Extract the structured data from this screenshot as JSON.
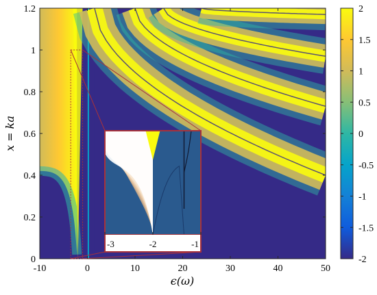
{
  "chart_data": {
    "type": "heatmap",
    "xlabel": "ϵ(ω)",
    "ylabel": "x = ka",
    "xlim": [
      -10,
      50
    ],
    "ylim": [
      0,
      1.2
    ],
    "x_ticks": [
      "-10",
      "0",
      "10",
      "20",
      "30",
      "40",
      "50"
    ],
    "y_ticks": [
      "0",
      "0.2",
      "0.4",
      "0.6",
      "0.8",
      "1",
      "1.2"
    ],
    "colorbar": {
      "range": [
        -2,
        2
      ],
      "ticks": [
        "2",
        "1.5",
        "1",
        "0.5",
        "0",
        "-0.5",
        "-1",
        "-1.5",
        "-2"
      ],
      "colormap": [
        "#352a87",
        "#0f5cdd",
        "#1481d6",
        "#06a4ca",
        "#2eb7a4",
        "#87bf77",
        "#d1bb59",
        "#fec832",
        "#f9fb0e"
      ]
    },
    "resonance_branches": [
      {
        "start_eps": 1.5,
        "x_at_eps_0": 1.2,
        "x_at_eps_50": 0.4
      },
      {
        "start_eps": 10,
        "x_at_eps_0": 1.2,
        "x_at_eps_50": 0.73
      },
      {
        "start_eps": 16,
        "x_at_eps_0": 1.2,
        "x_at_eps_50": 0.97
      },
      {
        "start_eps": 24,
        "x_at_eps_0": 1.2,
        "x_at_eps_50": 1.17
      }
    ],
    "zoom_region": {
      "eps_range": [
        -3.5,
        -1
      ],
      "x_range": [
        0,
        1
      ]
    },
    "inset": {
      "xlim": [
        -3,
        -1
      ],
      "x_ticks": [
        "-3",
        "-2",
        "-1"
      ]
    }
  }
}
